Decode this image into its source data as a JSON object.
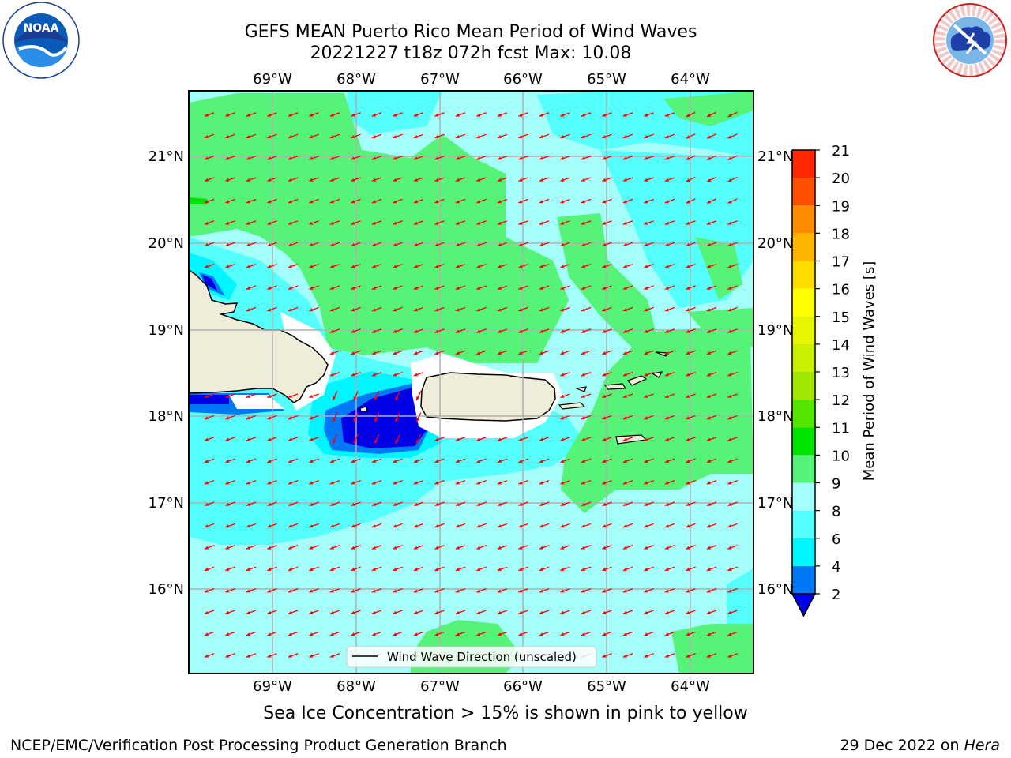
{
  "title": {
    "line1": "GEFS MEAN Puerto Rico Mean Period of Wind Waves",
    "line2": "20221227 t18z 072h fcst   Max: 10.08"
  },
  "map": {
    "longitude_labels": [
      "69°W",
      "68°W",
      "67°W",
      "66°W",
      "65°W",
      "64°W"
    ],
    "latitude_labels": [
      "21°N",
      "20°N",
      "19°N",
      "18°N",
      "17°N",
      "16°N"
    ],
    "legend_label": "Wind Wave Direction (unscaled)",
    "wave_direction": "toward west-southwest",
    "colors": {
      "ocean_8_9": "#a4fffb",
      "ocean_6_8": "#55fffb",
      "ocean_9_10": "#55f479",
      "ocean_10_11": "#00e400",
      "ocean_4_6": "#00f5fe",
      "ocean_2_4": "#0079f7",
      "ocean_lt2": "#0000e6",
      "land": "#efedda",
      "arrow": "#ff0000"
    }
  },
  "colorbar": {
    "label": "Mean Period of Wind Waves [s]",
    "ticks": [
      "2",
      "4",
      "6",
      "8",
      "9",
      "10",
      "11",
      "12",
      "13",
      "14",
      "15",
      "16",
      "17",
      "18",
      "19",
      "20",
      "21"
    ],
    "colors": [
      "#0000e6",
      "#0079f7",
      "#00f5fe",
      "#55fffb",
      "#a4fffb",
      "#55f479",
      "#00e400",
      "#55e600",
      "#a0e600",
      "#c8f000",
      "#e6f500",
      "#ffff00",
      "#ffdc00",
      "#ffb400",
      "#ff8c00",
      "#ff5000",
      "#ff2800",
      "#ff0000"
    ]
  },
  "caption": "Sea Ice Concentration > 15% is shown in pink to yellow",
  "footer": {
    "left": "NCEP/EMC/Verification Post Processing Product Generation Branch",
    "right_date": "29 Dec 2022 on ",
    "right_host": "Hera"
  },
  "logos": {
    "noaa_text": "NOAA",
    "nws_text": "NATIONAL WEATHER SERVICE"
  }
}
